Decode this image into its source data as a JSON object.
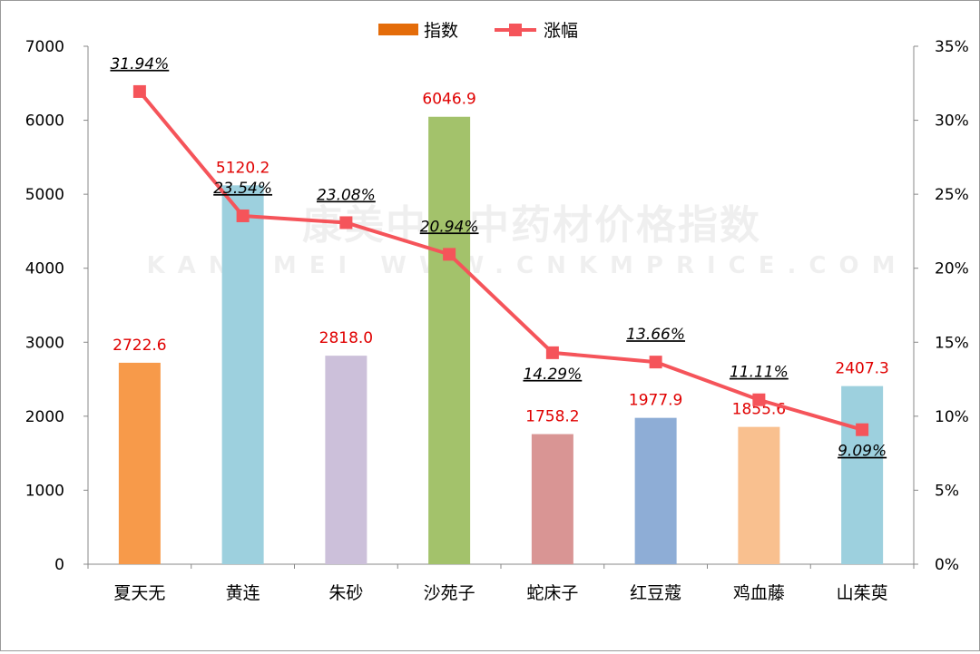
{
  "chart_data": {
    "type": "bar",
    "categories": [
      "夏天无",
      "黄连",
      "朱砂",
      "沙苑子",
      "蛇床子",
      "红豆蔻",
      "鸡血藤",
      "山茱萸"
    ],
    "series": [
      {
        "name": "指数",
        "type": "bar",
        "axis": "left",
        "values": [
          2722.6,
          5120.2,
          2818.0,
          6046.9,
          1758.2,
          1977.9,
          1855.6,
          2407.3
        ],
        "labels": [
          "2722.6",
          "5120.2",
          "2818.0",
          "6046.9",
          "1758.2",
          "1977.9",
          "1855.6",
          "2407.3"
        ],
        "colors": [
          "#f79a4a",
          "#9dd0de",
          "#ccc0da",
          "#a3c26b",
          "#d99594",
          "#8eadd6",
          "#f9c08f",
          "#9dd0de"
        ],
        "legend_color": "#e46c0a"
      },
      {
        "name": "涨幅",
        "type": "line",
        "axis": "right",
        "values": [
          31.94,
          23.54,
          23.08,
          20.94,
          14.29,
          13.66,
          11.11,
          9.09
        ],
        "labels": [
          "31.94%",
          "23.54%",
          "23.08%",
          "20.94%",
          "14.29%",
          "13.66%",
          "11.11%",
          "9.09%"
        ],
        "color": "#f5545a"
      }
    ],
    "y_left": {
      "min": 0,
      "max": 7000,
      "ticks": [
        "0",
        "1000",
        "2000",
        "3000",
        "4000",
        "5000",
        "6000",
        "7000"
      ]
    },
    "y_right": {
      "min": 0,
      "max": 35,
      "ticks": [
        "0%",
        "5%",
        "10%",
        "15%",
        "20%",
        "25%",
        "30%",
        "35%"
      ]
    },
    "legend_position": "top-center",
    "grid": false
  },
  "watermark": {
    "line1": "康美中国中药材价格指数",
    "line2": "KANGMEI WWW.CNKMPRICE.COM"
  }
}
